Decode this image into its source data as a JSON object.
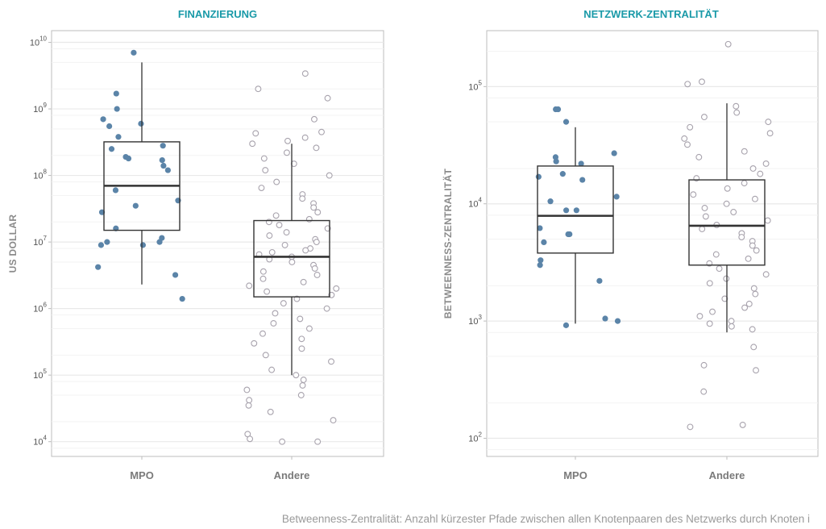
{
  "footnote": "Betweenness-Zentralität: Anzahl kürzester Pfade zwischen allen Knotenpaaren des Netzwerks durch Knoten i",
  "colors": {
    "title": "#1a9aa8",
    "mpo_point": "#5b84a8",
    "andere_point_stroke": "#a8a3ad",
    "box": "#333333",
    "grid": "#e9e9e9",
    "frame": "#bdbdbd"
  },
  "chart_data": [
    {
      "type": "box",
      "title": "FINANZIERUNG",
      "ylabel": "US DOLLAR",
      "xlabel": "",
      "yscale": "log",
      "ylim": [
        6000,
        15000000000
      ],
      "yticks": [
        {
          "value": 10000,
          "base": "10",
          "exp": "4"
        },
        {
          "value": 100000,
          "base": "10",
          "exp": "5"
        },
        {
          "value": 1000000,
          "base": "10",
          "exp": "6"
        },
        {
          "value": 10000000,
          "base": "10",
          "exp": "7"
        },
        {
          "value": 100000000,
          "base": "10",
          "exp": "8"
        },
        {
          "value": 1000000000,
          "base": "10",
          "exp": "9"
        },
        {
          "value": 10000000000,
          "base": "10",
          "exp": "10"
        }
      ],
      "grid": true,
      "categories": [
        "MPO",
        "Andere"
      ],
      "boxes": [
        {
          "category": "MPO",
          "whisker_low": 2300000,
          "q1": 15000000,
          "median": 70000000,
          "q3": 320000000,
          "whisker_high": 5000000000,
          "points_style": "filled",
          "points": [
            7000000000,
            1700000000,
            1000000000,
            700000000,
            600000000,
            550000000,
            380000000,
            280000000,
            250000000,
            190000000,
            180000000,
            170000000,
            140000000,
            120000000,
            60000000,
            42000000,
            35000000,
            28000000,
            16000000,
            11500000,
            10000000,
            10000000,
            9000000,
            9000000,
            4200000,
            3200000,
            1400000
          ]
        },
        {
          "category": "Andere",
          "whisker_low": 100000,
          "q1": 1500000,
          "median": 6000000,
          "q3": 21000000,
          "whisker_high": 300000000,
          "points_style": "hollow",
          "points": [
            3400000000,
            2000000000,
            1450000000,
            700000000,
            450000000,
            430000000,
            370000000,
            330000000,
            300000000,
            260000000,
            220000000,
            180000000,
            150000000,
            120000000,
            100000000,
            80000000,
            65000000,
            52000000,
            45000000,
            38000000,
            33000000,
            28000000,
            25000000,
            22000000,
            20000000,
            18000000,
            16000000,
            14000000,
            12500000,
            11000000,
            10000000,
            9000000,
            8000000,
            7500000,
            7000000,
            6500000,
            6000000,
            5500000,
            5000000,
            4500000,
            4000000,
            3600000,
            3200000,
            2800000,
            2500000,
            2200000,
            2000000,
            1800000,
            1600000,
            1400000,
            1200000,
            1000000,
            850000,
            700000,
            600000,
            500000,
            420000,
            350000,
            300000,
            250000,
            200000,
            160000,
            120000,
            100000,
            85000,
            70000,
            60000,
            50000,
            42000,
            35000,
            28000,
            21000,
            13000,
            11000,
            10000,
            10000
          ]
        }
      ]
    },
    {
      "type": "box",
      "title": "NETZWERK-ZENTRALITÄT",
      "ylabel": "BETWEENNESS-ZENTRALITÄT",
      "xlabel": "",
      "yscale": "log",
      "ylim": [
        70,
        300000
      ],
      "yticks": [
        {
          "value": 100,
          "base": "10",
          "exp": "2"
        },
        {
          "value": 1000,
          "base": "10",
          "exp": "3"
        },
        {
          "value": 10000,
          "base": "10",
          "exp": "4"
        },
        {
          "value": 100000,
          "base": "10",
          "exp": "5"
        }
      ],
      "grid": true,
      "categories": [
        "MPO",
        "Andere"
      ],
      "boxes": [
        {
          "category": "MPO",
          "whisker_low": 950,
          "q1": 3800,
          "median": 7900,
          "q3": 21000,
          "whisker_high": 45000,
          "points_style": "filled",
          "points": [
            64000,
            64000,
            50000,
            27000,
            25000,
            23000,
            22000,
            18000,
            17000,
            16000,
            11500,
            10500,
            8800,
            8800,
            6200,
            5500,
            5500,
            4700,
            3300,
            3000,
            2200,
            1050,
            1000,
            920
          ]
        },
        {
          "category": "Andere",
          "whisker_low": 800,
          "q1": 3000,
          "median": 6500,
          "q3": 16000,
          "whisker_high": 72000,
          "points_style": "hollow",
          "points": [
            230000,
            110000,
            105000,
            68000,
            60000,
            55000,
            50000,
            45000,
            40000,
            36000,
            32000,
            28000,
            25000,
            22000,
            20000,
            18000,
            16500,
            15000,
            13500,
            12000,
            11000,
            10000,
            9200,
            8500,
            7800,
            7200,
            6600,
            6100,
            5600,
            5200,
            4800,
            4400,
            4000,
            3700,
            3400,
            3100,
            2800,
            2500,
            2300,
            2100,
            1900,
            1700,
            1550,
            1400,
            1300,
            1200,
            1100,
            1000,
            950,
            900,
            850,
            600,
            420,
            380,
            250,
            130,
            125
          ]
        }
      ]
    }
  ]
}
